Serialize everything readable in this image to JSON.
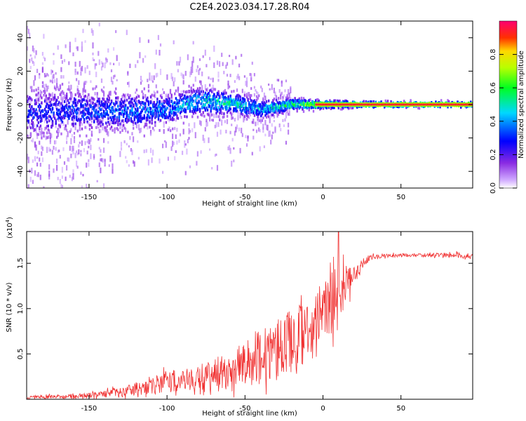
{
  "title": "C2E4.2023.034.17.28.R04",
  "chart_data": [
    {
      "type": "heatmap",
      "title": "C2E4.2023.034.17.28.R04",
      "xlabel": "Height of straight line (km)",
      "ylabel": "Frequency (Hz)",
      "xlim": [
        -190,
        96
      ],
      "ylim": [
        -50,
        50
      ],
      "xticks": [
        -150,
        -100,
        -50,
        0,
        50
      ],
      "yticks": [
        -40,
        -20,
        0,
        20,
        40
      ],
      "grid": false,
      "colorbar": {
        "label": "Normalized spectral amplitude",
        "range": [
          0,
          1
        ],
        "ticks": [
          0.0,
          0.2,
          0.4,
          0.6,
          0.8
        ],
        "colormap": "rainbow (purple → blue → cyan → green → yellow → red)"
      },
      "description_points": {
        "x": [
          -180,
          -150,
          -120,
          -100,
          -80,
          -60,
          -40,
          -20,
          0,
          20,
          50,
          95
        ],
        "center_frequency": [
          -5,
          -4,
          -4,
          -3,
          2,
          1,
          -3,
          0,
          0,
          0,
          0,
          0
        ],
        "spread_hz": [
          12,
          10,
          9,
          8,
          7,
          6,
          5,
          3,
          2,
          1.5,
          1.5,
          1.5
        ],
        "peak_amplitude": [
          0.35,
          0.4,
          0.45,
          0.45,
          0.55,
          0.6,
          0.5,
          0.7,
          0.9,
          0.95,
          0.95,
          0.95
        ]
      }
    },
    {
      "type": "line",
      "xlabel": "Height of straight line (km)",
      "ylabel": "SNR (10 * v/v)",
      "y_multiplier": "(x10",
      "y_multiplier_exp": "4",
      "y_multiplier_close": ")",
      "xlim": [
        -190,
        96
      ],
      "ylim": [
        0,
        1.85
      ],
      "xticks": [
        -150,
        -100,
        -50,
        0,
        50
      ],
      "ytick_labels": [
        "0.5",
        "1.0",
        "1.5"
      ],
      "yticks": [
        0.5,
        1.0,
        1.5
      ],
      "grid": false,
      "series": [
        {
          "color": "#f03030",
          "x": [
            -190,
            -170,
            -150,
            -140,
            -130,
            -120,
            -110,
            -100,
            -90,
            -80,
            -70,
            -60,
            -50,
            -40,
            -30,
            -20,
            -10,
            0,
            5,
            10,
            15,
            20,
            25,
            30,
            40,
            50,
            60,
            70,
            80,
            95
          ],
          "baseline": [
            0.02,
            0.03,
            0.04,
            0.06,
            0.08,
            0.11,
            0.15,
            0.19,
            0.22,
            0.25,
            0.29,
            0.33,
            0.38,
            0.45,
            0.55,
            0.66,
            0.78,
            0.92,
            1.06,
            1.18,
            1.26,
            1.38,
            1.5,
            1.56,
            1.58,
            1.59,
            1.59,
            1.59,
            1.59,
            1.58
          ],
          "noise_amplitude": [
            0.02,
            0.02,
            0.03,
            0.04,
            0.05,
            0.07,
            0.09,
            0.12,
            0.12,
            0.13,
            0.16,
            0.2,
            0.25,
            0.32,
            0.35,
            0.35,
            0.3,
            0.3,
            0.35,
            0.3,
            0.2,
            0.12,
            0.06,
            0.03,
            0.02,
            0.02,
            0.02,
            0.02,
            0.03,
            0.03
          ],
          "peak": {
            "x": 10,
            "y": 1.85
          }
        }
      ]
    }
  ]
}
